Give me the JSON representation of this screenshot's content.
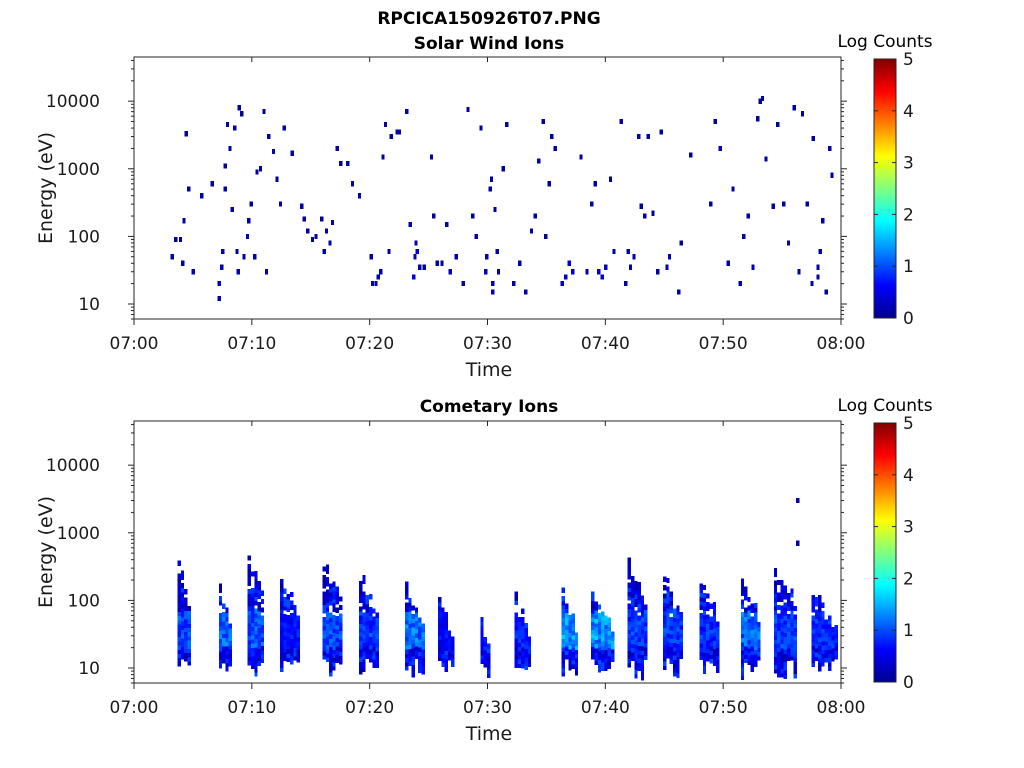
{
  "figure": {
    "title": "RPCICA150926T07.PNG"
  },
  "colormap": "jet",
  "colors": {
    "axis": "#262626",
    "background": "#ffffff"
  },
  "chart_data": [
    {
      "type": "heatmap",
      "title": "Solar Wind Ions",
      "xlabel": "Time",
      "ylabel": "Energy (eV)",
      "x_ticks": [
        "07:00",
        "07:10",
        "07:20",
        "07:30",
        "07:40",
        "07:50",
        "08:00"
      ],
      "x_range_minutes": [
        0,
        60
      ],
      "y_scale": "log",
      "y_ticks": [
        "10",
        "100",
        "1000",
        "10000"
      ],
      "y_range": [
        6,
        45000
      ],
      "colorbar": {
        "label": "Log Counts",
        "range": [
          0,
          5
        ],
        "ticks": [
          "0",
          "1",
          "2",
          "3",
          "4",
          "5"
        ]
      },
      "cells": [
        [
          3.1,
          50,
          0.2
        ],
        [
          3.4,
          90,
          0.2
        ],
        [
          3.8,
          90,
          0.2
        ],
        [
          4.0,
          40,
          0.2
        ],
        [
          4.1,
          170,
          0.2
        ],
        [
          4.3,
          3300,
          0.2
        ],
        [
          4.5,
          500,
          0.2
        ],
        [
          4.9,
          30,
          0.3
        ],
        [
          5.6,
          400,
          0.2
        ],
        [
          6.5,
          600,
          0.2
        ],
        [
          7.1,
          20,
          0.4
        ],
        [
          7.1,
          12,
          0.3
        ],
        [
          7.3,
          35,
          0.3
        ],
        [
          7.4,
          60,
          0.2
        ],
        [
          7.6,
          500,
          0.2
        ],
        [
          7.6,
          1100,
          0.2
        ],
        [
          7.8,
          4500,
          0.2
        ],
        [
          8.0,
          2000,
          0.2
        ],
        [
          8.2,
          250,
          0.2
        ],
        [
          8.4,
          4000,
          0.2
        ],
        [
          8.6,
          60,
          0.2
        ],
        [
          8.7,
          30,
          0.3
        ],
        [
          8.8,
          8000,
          0.2
        ],
        [
          9.0,
          6500,
          0.2
        ],
        [
          9.2,
          50,
          0.2
        ],
        [
          9.5,
          100,
          0.3
        ],
        [
          9.6,
          170,
          0.2
        ],
        [
          9.8,
          300,
          0.2
        ],
        [
          10.1,
          50,
          0.2
        ],
        [
          10.3,
          900,
          0.2
        ],
        [
          10.6,
          1000,
          0.2
        ],
        [
          10.9,
          7000,
          0.2
        ],
        [
          11.1,
          30,
          0.2
        ],
        [
          11.3,
          3000,
          0.2
        ],
        [
          11.7,
          1800,
          0.2
        ],
        [
          12.0,
          700,
          0.2
        ],
        [
          12.3,
          300,
          0.2
        ],
        [
          12.6,
          4000,
          0.2
        ],
        [
          13.3,
          1700,
          0.2
        ],
        [
          14.1,
          280,
          0.2
        ],
        [
          14.3,
          180,
          0.2
        ],
        [
          14.6,
          120,
          0.2
        ],
        [
          15.0,
          90,
          0.2
        ],
        [
          15.3,
          100,
          0.2
        ],
        [
          15.8,
          180,
          0.2
        ],
        [
          16.0,
          60,
          0.2
        ],
        [
          16.2,
          120,
          0.2
        ],
        [
          16.5,
          80,
          0.2
        ],
        [
          16.7,
          160,
          0.2
        ],
        [
          17.1,
          2000,
          0.2
        ],
        [
          17.4,
          1200,
          0.2
        ],
        [
          18.0,
          1200,
          0.2
        ],
        [
          18.4,
          600,
          0.2
        ],
        [
          19.0,
          400,
          0.2
        ],
        [
          20.0,
          50,
          0.2
        ],
        [
          20.1,
          20,
          0.3
        ],
        [
          20.4,
          20,
          0.3
        ],
        [
          20.6,
          25,
          0.3
        ],
        [
          20.8,
          30,
          0.3
        ],
        [
          21.0,
          1500,
          0.2
        ],
        [
          21.2,
          4500,
          0.2
        ],
        [
          21.5,
          60,
          0.2
        ],
        [
          21.7,
          3000,
          0.2
        ],
        [
          22.2,
          3500,
          0.2
        ],
        [
          22.4,
          3500,
          0.2
        ],
        [
          23.0,
          7000,
          0.2
        ],
        [
          23.3,
          150,
          0.2
        ],
        [
          23.6,
          25,
          0.5
        ],
        [
          23.7,
          50,
          0.4
        ],
        [
          23.8,
          80,
          0.3
        ],
        [
          23.9,
          60,
          0.4
        ],
        [
          24.1,
          35,
          0.3
        ],
        [
          24.5,
          35,
          0.2
        ],
        [
          25.1,
          1500,
          0.2
        ],
        [
          25.3,
          200,
          0.2
        ],
        [
          25.6,
          40,
          0.2
        ],
        [
          26.0,
          40,
          0.2
        ],
        [
          26.4,
          150,
          0.2
        ],
        [
          26.7,
          30,
          0.3
        ],
        [
          27.2,
          50,
          0.2
        ],
        [
          27.8,
          20,
          0.2
        ],
        [
          28.2,
          7500,
          0.2
        ],
        [
          28.6,
          200,
          0.2
        ],
        [
          28.9,
          100,
          0.2
        ],
        [
          29.3,
          4000,
          0.2
        ],
        [
          29.7,
          30,
          0.3
        ],
        [
          29.8,
          50,
          0.2
        ],
        [
          30.1,
          500,
          0.2
        ],
        [
          30.2,
          700,
          0.2
        ],
        [
          30.3,
          20,
          0.3
        ],
        [
          30.3,
          15,
          0.3
        ],
        [
          30.5,
          250,
          0.2
        ],
        [
          30.7,
          60,
          0.2
        ],
        [
          30.8,
          30,
          0.2
        ],
        [
          31.2,
          1000,
          0.2
        ],
        [
          31.5,
          4500,
          0.2
        ],
        [
          32.1,
          20,
          0.2
        ],
        [
          32.6,
          40,
          0.2
        ],
        [
          33.1,
          15,
          0.2
        ],
        [
          33.6,
          120,
          0.2
        ],
        [
          33.9,
          200,
          0.2
        ],
        [
          34.2,
          1300,
          0.2
        ],
        [
          34.6,
          5000,
          0.2
        ],
        [
          34.8,
          100,
          0.2
        ],
        [
          35.1,
          600,
          0.2
        ],
        [
          35.3,
          3000,
          0.2
        ],
        [
          35.6,
          2000,
          0.2
        ],
        [
          36.2,
          20,
          0.3
        ],
        [
          36.5,
          25,
          0.4
        ],
        [
          36.8,
          40,
          0.5
        ],
        [
          37.1,
          30,
          0.4
        ],
        [
          37.8,
          1500,
          0.2
        ],
        [
          38.3,
          30,
          0.2
        ],
        [
          38.7,
          300,
          0.2
        ],
        [
          39.0,
          600,
          0.2
        ],
        [
          39.3,
          30,
          0.4
        ],
        [
          39.6,
          25,
          0.5
        ],
        [
          39.9,
          35,
          0.5
        ],
        [
          40.3,
          700,
          0.2
        ],
        [
          40.6,
          60,
          0.2
        ],
        [
          41.2,
          5000,
          0.2
        ],
        [
          41.6,
          20,
          0.2
        ],
        [
          41.8,
          60,
          0.2
        ],
        [
          42.0,
          35,
          0.3
        ],
        [
          42.3,
          50,
          0.3
        ],
        [
          42.7,
          3000,
          0.2
        ],
        [
          42.9,
          280,
          0.2
        ],
        [
          43.2,
          200,
          0.2
        ],
        [
          43.5,
          3000,
          0.2
        ],
        [
          43.9,
          220,
          0.2
        ],
        [
          44.3,
          30,
          0.2
        ],
        [
          44.6,
          3500,
          0.2
        ],
        [
          45.1,
          35,
          0.3
        ],
        [
          45.3,
          50,
          0.3
        ],
        [
          46.1,
          15,
          0.2
        ],
        [
          46.3,
          80,
          0.2
        ],
        [
          47.1,
          1600,
          0.2
        ],
        [
          48.8,
          300,
          0.2
        ],
        [
          49.2,
          5000,
          0.2
        ],
        [
          49.6,
          2000,
          0.2
        ],
        [
          50.3,
          40,
          0.2
        ],
        [
          50.7,
          500,
          0.2
        ],
        [
          51.3,
          20,
          0.2
        ],
        [
          51.6,
          100,
          0.2
        ],
        [
          52.0,
          200,
          0.2
        ],
        [
          52.4,
          35,
          0.3
        ],
        [
          52.8,
          5500,
          0.2
        ],
        [
          53.0,
          10000,
          0.2
        ],
        [
          53.2,
          11000,
          0.2
        ],
        [
          53.5,
          1400,
          0.2
        ],
        [
          54.1,
          280,
          0.2
        ],
        [
          54.5,
          4500,
          0.2
        ],
        [
          55.0,
          300,
          0.2
        ],
        [
          55.4,
          80,
          0.2
        ],
        [
          55.9,
          8000,
          0.2
        ],
        [
          56.3,
          30,
          0.2
        ],
        [
          56.6,
          6500,
          0.2
        ],
        [
          57.0,
          300,
          0.2
        ],
        [
          57.5,
          2800,
          0.2
        ],
        [
          57.9,
          35,
          0.3
        ],
        [
          58.1,
          60,
          0.2
        ],
        [
          58.3,
          170,
          0.2
        ],
        [
          58.6,
          15,
          0.2
        ],
        [
          58.9,
          2000,
          0.2
        ],
        [
          59.1,
          800,
          0.2
        ],
        [
          57.4,
          20,
          0.3
        ],
        [
          57.9,
          25,
          0.2
        ]
      ]
    },
    {
      "type": "heatmap",
      "title": "Cometary Ions",
      "xlabel": "Time",
      "ylabel": "Energy (eV)",
      "x_ticks": [
        "07:00",
        "07:10",
        "07:20",
        "07:30",
        "07:40",
        "07:50",
        "08:00"
      ],
      "x_range_minutes": [
        0,
        60
      ],
      "y_scale": "log",
      "y_ticks": [
        "10",
        "100",
        "1000",
        "10000"
      ],
      "y_range": [
        6,
        45000
      ],
      "colorbar": {
        "label": "Log Counts",
        "range": [
          0,
          5
        ],
        "ticks": [
          "0",
          "1",
          "2",
          "3",
          "4",
          "5"
        ]
      },
      "bursts": [
        {
          "t": 4.2,
          "width": 1.0,
          "peak_energy": 400,
          "level": 1.4
        },
        {
          "t": 7.8,
          "width": 1.2,
          "peak_energy": 180,
          "level": 1.6
        },
        {
          "t": 10.3,
          "width": 1.3,
          "peak_energy": 500,
          "level": 1.5
        },
        {
          "t": 13.2,
          "width": 1.6,
          "peak_energy": 260,
          "level": 1.0
        },
        {
          "t": 16.8,
          "width": 1.6,
          "peak_energy": 400,
          "level": 1.4
        },
        {
          "t": 20.0,
          "width": 1.8,
          "peak_energy": 260,
          "level": 1.3
        },
        {
          "t": 23.8,
          "width": 1.6,
          "peak_energy": 160,
          "level": 1.7
        },
        {
          "t": 26.5,
          "width": 1.4,
          "peak_energy": 120,
          "level": 0.9
        },
        {
          "t": 30.0,
          "width": 1.2,
          "peak_energy": 50,
          "level": 1.0
        },
        {
          "t": 33.0,
          "width": 1.4,
          "peak_energy": 130,
          "level": 1.1
        },
        {
          "t": 37.0,
          "width": 1.4,
          "peak_energy": 150,
          "level": 1.9
        },
        {
          "t": 39.8,
          "width": 2.0,
          "peak_energy": 130,
          "level": 2.0
        },
        {
          "t": 42.8,
          "width": 1.8,
          "peak_energy": 350,
          "level": 1.3
        },
        {
          "t": 45.8,
          "width": 1.8,
          "peak_energy": 220,
          "level": 1.3
        },
        {
          "t": 48.9,
          "width": 1.8,
          "peak_energy": 220,
          "level": 1.2
        },
        {
          "t": 52.3,
          "width": 1.6,
          "peak_energy": 220,
          "level": 1.6
        },
        {
          "t": 55.3,
          "width": 2.0,
          "peak_energy": 350,
          "level": 1.3
        },
        {
          "t": 58.7,
          "width": 2.4,
          "peak_energy": 130,
          "level": 1.2
        }
      ],
      "isolated_cells": [
        [
          56.2,
          3000,
          0.2
        ],
        [
          56.2,
          700,
          0.2
        ]
      ]
    }
  ]
}
